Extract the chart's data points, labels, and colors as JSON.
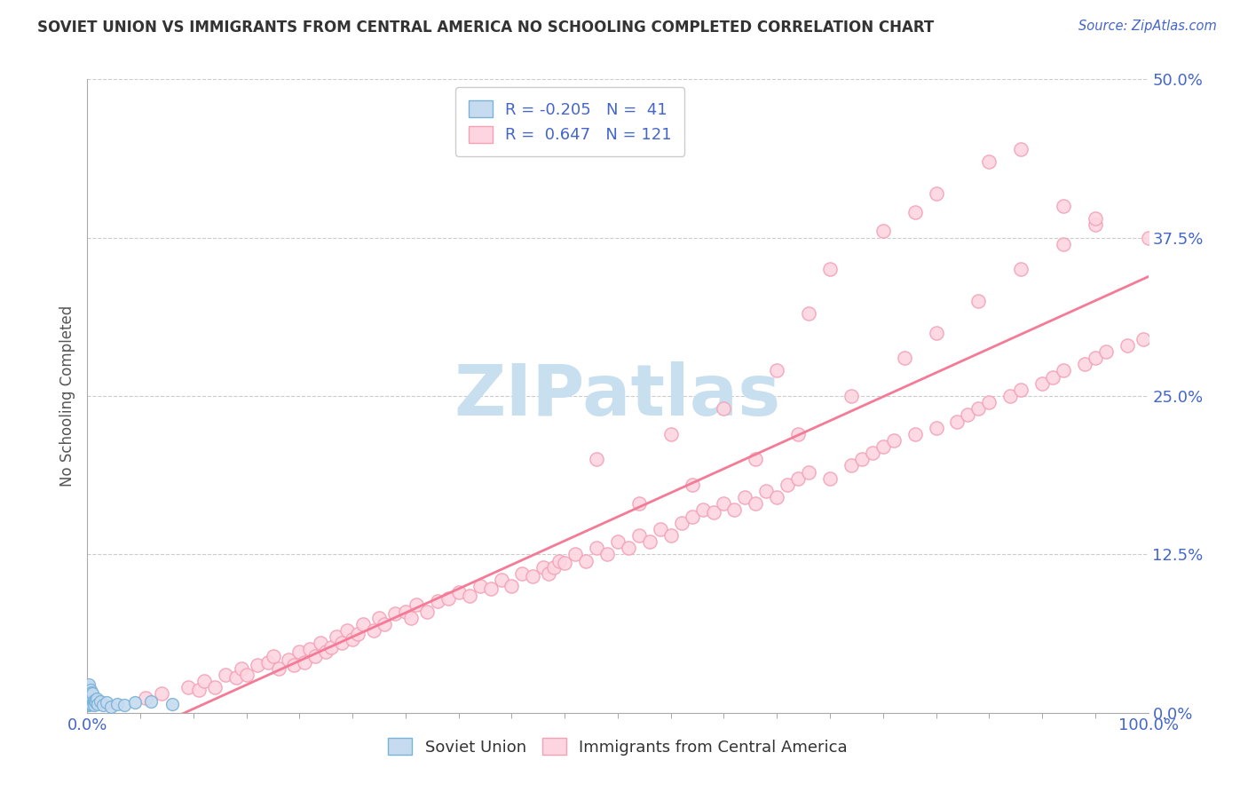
{
  "title": "SOVIET UNION VS IMMIGRANTS FROM CENTRAL AMERICA NO SCHOOLING COMPLETED CORRELATION CHART",
  "source": "Source: ZipAtlas.com",
  "ylabel": "No Schooling Completed",
  "yticks_labels": [
    "0.0%",
    "12.5%",
    "25.0%",
    "37.5%",
    "50.0%"
  ],
  "ytick_vals": [
    0.0,
    12.5,
    25.0,
    37.5,
    50.0
  ],
  "xlim": [
    0,
    100
  ],
  "ylim": [
    0,
    50
  ],
  "legend_label1": "Soviet Union",
  "legend_label2": "Immigrants from Central America",
  "r_blue": -0.205,
  "n_blue": 41,
  "r_pink": 0.647,
  "n_pink": 121,
  "blue_edge_color": "#7ab3d9",
  "blue_face_color": "#c6dbef",
  "pink_edge_color": "#f4a0b5",
  "pink_face_color": "#fcd5e0",
  "title_color": "#333333",
  "source_color": "#4466cc",
  "tick_color": "#4466cc",
  "ylabel_color": "#555555",
  "watermark_color": "#c8dff0",
  "background_color": "#ffffff",
  "grid_color": "#cccccc",
  "pink_line_color": "#f47a96",
  "blue_x": [
    0.08,
    0.09,
    0.1,
    0.11,
    0.12,
    0.13,
    0.14,
    0.15,
    0.16,
    0.17,
    0.18,
    0.19,
    0.2,
    0.22,
    0.24,
    0.26,
    0.28,
    0.3,
    0.32,
    0.35,
    0.38,
    0.4,
    0.42,
    0.45,
    0.5,
    0.55,
    0.6,
    0.65,
    0.7,
    0.8,
    0.9,
    1.0,
    1.2,
    1.5,
    1.8,
    2.2,
    2.8,
    3.5,
    4.5,
    6.0,
    8.0
  ],
  "blue_y": [
    1.2,
    0.8,
    1.5,
    2.0,
    1.8,
    0.6,
    1.0,
    1.5,
    2.2,
    1.3,
    0.9,
    1.6,
    1.1,
    0.7,
    1.4,
    1.8,
    1.0,
    0.8,
    1.2,
    1.6,
    0.9,
    1.3,
    0.7,
    1.1,
    1.5,
    0.8,
    1.0,
    0.6,
    0.9,
    0.8,
    1.1,
    0.7,
    0.9,
    0.6,
    0.8,
    0.5,
    0.7,
    0.6,
    0.8,
    0.9,
    0.7
  ],
  "pink_x": [
    5.5,
    7.0,
    9.5,
    10.5,
    11.0,
    12.0,
    13.0,
    14.0,
    14.5,
    15.0,
    16.0,
    17.0,
    17.5,
    18.0,
    19.0,
    19.5,
    20.0,
    20.5,
    21.0,
    21.5,
    22.0,
    22.5,
    23.0,
    23.5,
    24.0,
    24.5,
    25.0,
    25.5,
    26.0,
    27.0,
    27.5,
    28.0,
    29.0,
    30.0,
    30.5,
    31.0,
    32.0,
    33.0,
    34.0,
    35.0,
    36.0,
    37.0,
    38.0,
    39.0,
    40.0,
    41.0,
    42.0,
    43.0,
    43.5,
    44.0,
    44.5,
    45.0,
    46.0,
    47.0,
    48.0,
    49.0,
    50.0,
    51.0,
    52.0,
    53.0,
    54.0,
    55.0,
    56.0,
    57.0,
    58.0,
    59.0,
    60.0,
    61.0,
    62.0,
    63.0,
    64.0,
    65.0,
    66.0,
    67.0,
    68.0,
    70.0,
    72.0,
    73.0,
    74.0,
    75.0,
    76.0,
    78.0,
    80.0,
    82.0,
    83.0,
    84.0,
    85.0,
    87.0,
    88.0,
    90.0,
    91.0,
    92.0,
    94.0,
    95.0,
    96.0,
    98.0,
    99.5,
    48.0,
    55.0,
    60.0,
    65.0,
    68.0,
    70.0,
    75.0,
    78.0,
    80.0,
    85.0,
    88.0,
    92.0,
    95.0,
    100.0,
    52.0,
    57.0,
    63.0,
    67.0,
    72.0,
    77.0,
    80.0,
    84.0,
    88.0,
    92.0,
    95.0
  ],
  "pink_y": [
    1.2,
    1.5,
    2.0,
    1.8,
    2.5,
    2.0,
    3.0,
    2.8,
    3.5,
    3.0,
    3.8,
    4.0,
    4.5,
    3.5,
    4.2,
    3.8,
    4.8,
    4.0,
    5.0,
    4.5,
    5.5,
    4.8,
    5.2,
    6.0,
    5.5,
    6.5,
    5.8,
    6.2,
    7.0,
    6.5,
    7.5,
    7.0,
    7.8,
    8.0,
    7.5,
    8.5,
    8.0,
    8.8,
    9.0,
    9.5,
    9.2,
    10.0,
    9.8,
    10.5,
    10.0,
    11.0,
    10.8,
    11.5,
    11.0,
    11.5,
    12.0,
    11.8,
    12.5,
    12.0,
    13.0,
    12.5,
    13.5,
    13.0,
    14.0,
    13.5,
    14.5,
    14.0,
    15.0,
    15.5,
    16.0,
    15.8,
    16.5,
    16.0,
    17.0,
    16.5,
    17.5,
    17.0,
    18.0,
    18.5,
    19.0,
    18.5,
    19.5,
    20.0,
    20.5,
    21.0,
    21.5,
    22.0,
    22.5,
    23.0,
    23.5,
    24.0,
    24.5,
    25.0,
    25.5,
    26.0,
    26.5,
    27.0,
    27.5,
    28.0,
    28.5,
    29.0,
    29.5,
    20.0,
    22.0,
    24.0,
    27.0,
    31.5,
    35.0,
    38.0,
    39.5,
    41.0,
    43.5,
    44.5,
    40.0,
    38.5,
    37.5,
    16.5,
    18.0,
    20.0,
    22.0,
    25.0,
    28.0,
    30.0,
    32.5,
    35.0,
    37.0,
    39.0
  ]
}
